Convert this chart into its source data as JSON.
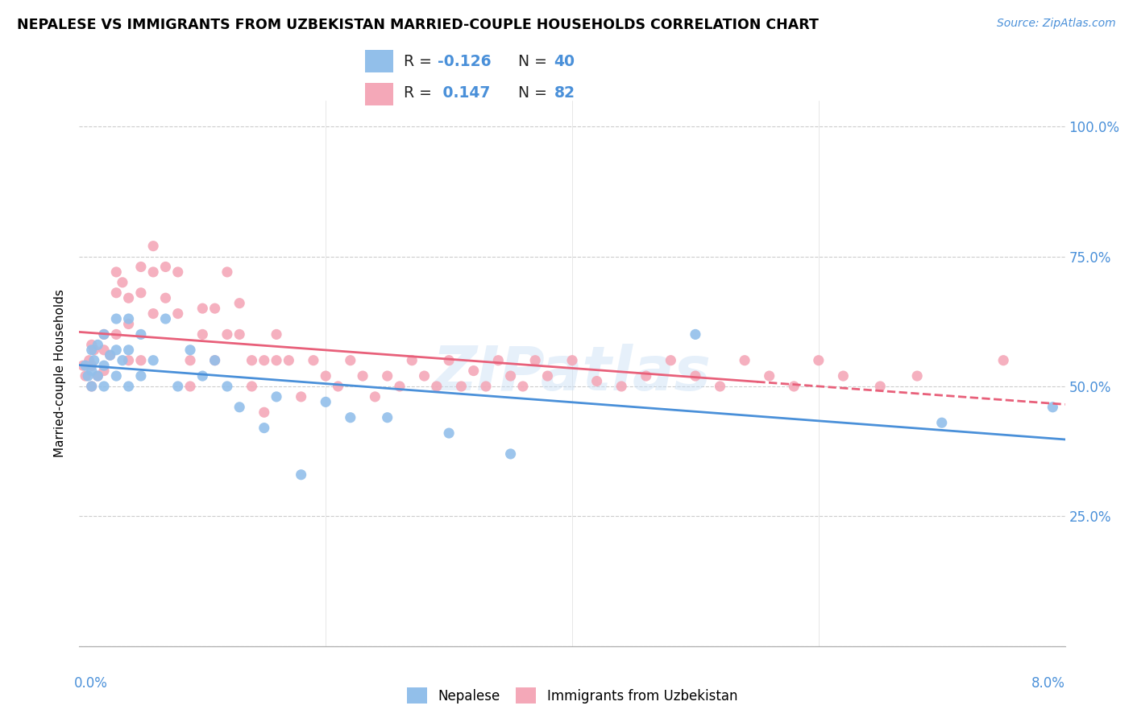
{
  "title": "NEPALESE VS IMMIGRANTS FROM UZBEKISTAN MARRIED-COUPLE HOUSEHOLDS CORRELATION CHART",
  "source": "Source: ZipAtlas.com",
  "ylabel": "Married-couple Households",
  "y_ticks": [
    0.0,
    0.25,
    0.5,
    0.75,
    1.0
  ],
  "y_tick_labels": [
    "",
    "25.0%",
    "50.0%",
    "75.0%",
    "100.0%"
  ],
  "x_range": [
    0.0,
    0.08
  ],
  "y_range": [
    0.0,
    1.05
  ],
  "legend_label1": "Nepalese",
  "legend_label2": "Immigrants from Uzbekistan",
  "R1": -0.126,
  "N1": 40,
  "R2": 0.147,
  "N2": 82,
  "color1": "#92bfea",
  "color2": "#f4a8b8",
  "line_color1": "#4a90d9",
  "line_color2": "#e8607a",
  "watermark": "ZIPatlas",
  "nepalese_x": [
    0.0005,
    0.0007,
    0.001,
    0.001,
    0.001,
    0.0012,
    0.0015,
    0.0015,
    0.002,
    0.002,
    0.002,
    0.0025,
    0.003,
    0.003,
    0.003,
    0.0035,
    0.004,
    0.004,
    0.004,
    0.005,
    0.005,
    0.006,
    0.007,
    0.008,
    0.009,
    0.01,
    0.011,
    0.012,
    0.013,
    0.015,
    0.016,
    0.018,
    0.02,
    0.022,
    0.025,
    0.03,
    0.035,
    0.05,
    0.07,
    0.079
  ],
  "nepalese_y": [
    0.54,
    0.52,
    0.57,
    0.53,
    0.5,
    0.55,
    0.58,
    0.52,
    0.6,
    0.54,
    0.5,
    0.56,
    0.63,
    0.57,
    0.52,
    0.55,
    0.63,
    0.57,
    0.5,
    0.6,
    0.52,
    0.55,
    0.63,
    0.5,
    0.57,
    0.52,
    0.55,
    0.5,
    0.46,
    0.42,
    0.48,
    0.33,
    0.47,
    0.44,
    0.44,
    0.41,
    0.37,
    0.6,
    0.43,
    0.46
  ],
  "uzbek_x": [
    0.0003,
    0.0005,
    0.0008,
    0.001,
    0.001,
    0.001,
    0.0012,
    0.0015,
    0.002,
    0.002,
    0.002,
    0.0025,
    0.003,
    0.003,
    0.003,
    0.0035,
    0.004,
    0.004,
    0.004,
    0.005,
    0.005,
    0.005,
    0.006,
    0.006,
    0.006,
    0.007,
    0.007,
    0.008,
    0.008,
    0.009,
    0.009,
    0.01,
    0.01,
    0.011,
    0.011,
    0.012,
    0.012,
    0.013,
    0.013,
    0.014,
    0.014,
    0.015,
    0.015,
    0.016,
    0.016,
    0.017,
    0.018,
    0.019,
    0.02,
    0.021,
    0.022,
    0.023,
    0.024,
    0.025,
    0.026,
    0.027,
    0.028,
    0.029,
    0.03,
    0.031,
    0.032,
    0.033,
    0.034,
    0.035,
    0.036,
    0.037,
    0.038,
    0.04,
    0.042,
    0.044,
    0.046,
    0.048,
    0.05,
    0.052,
    0.054,
    0.056,
    0.058,
    0.06,
    0.062,
    0.065,
    0.068,
    0.075
  ],
  "uzbek_y": [
    0.54,
    0.52,
    0.55,
    0.58,
    0.54,
    0.5,
    0.57,
    0.52,
    0.6,
    0.57,
    0.53,
    0.56,
    0.72,
    0.68,
    0.6,
    0.7,
    0.67,
    0.62,
    0.55,
    0.73,
    0.68,
    0.55,
    0.77,
    0.72,
    0.64,
    0.73,
    0.67,
    0.72,
    0.64,
    0.55,
    0.5,
    0.65,
    0.6,
    0.55,
    0.65,
    0.6,
    0.72,
    0.66,
    0.6,
    0.55,
    0.5,
    0.55,
    0.45,
    0.6,
    0.55,
    0.55,
    0.48,
    0.55,
    0.52,
    0.5,
    0.55,
    0.52,
    0.48,
    0.52,
    0.5,
    0.55,
    0.52,
    0.5,
    0.55,
    0.5,
    0.53,
    0.5,
    0.55,
    0.52,
    0.5,
    0.55,
    0.52,
    0.55,
    0.51,
    0.5,
    0.52,
    0.55,
    0.52,
    0.5,
    0.55,
    0.52,
    0.5,
    0.55,
    0.52,
    0.5,
    0.52,
    0.55
  ]
}
